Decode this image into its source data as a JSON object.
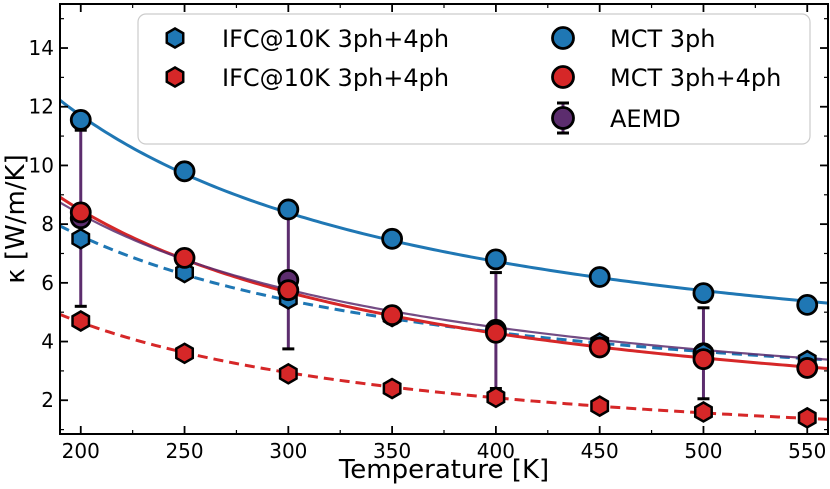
{
  "chart_data": {
    "type": "line",
    "xlabel": "Temperature [K]",
    "ylabel": "κ [W/m/K]",
    "xlim": [
      190,
      560
    ],
    "ylim": [
      0.85,
      15.5
    ],
    "xticks": [
      200,
      250,
      300,
      350,
      400,
      450,
      500,
      550
    ],
    "xtick_labels": [
      "200",
      "250",
      "300",
      "350",
      "400",
      "450",
      "500",
      "550"
    ],
    "yticks": [
      2,
      4,
      6,
      8,
      10,
      12,
      14
    ],
    "ytick_labels": [
      "2",
      "4",
      "6",
      "8",
      "10",
      "12",
      "14"
    ],
    "grid": false,
    "legend_position": "top-right",
    "colors": {
      "blue": "#1f77b4",
      "red": "#d62728",
      "purple": "#5c2d6e",
      "edge": "#000000"
    },
    "x": [
      200,
      250,
      300,
      350,
      400,
      450,
      500,
      550
    ],
    "series": [
      {
        "name": "IFC@10K 3ph+4ph",
        "marker": "hexagon",
        "color": "blue",
        "line": "dashed",
        "values": [
          7.5,
          6.35,
          5.45,
          4.85,
          4.35,
          3.95,
          3.6,
          3.35
        ]
      },
      {
        "name": "IFC@10K 3ph+4ph",
        "marker": "hexagon",
        "color": "red",
        "line": "dashed",
        "values": [
          4.7,
          3.6,
          2.9,
          2.4,
          2.1,
          1.8,
          1.6,
          1.4
        ]
      },
      {
        "name": "MCT 3ph",
        "marker": "circle",
        "color": "blue",
        "line": "solid",
        "values": [
          11.55,
          9.8,
          8.5,
          7.5,
          6.8,
          6.2,
          5.65,
          5.25
        ]
      },
      {
        "name": "MCT 3ph+4ph",
        "marker": "circle",
        "color": "red",
        "line": "solid",
        "values": [
          8.4,
          6.85,
          5.75,
          4.9,
          4.3,
          3.8,
          3.4,
          3.1
        ]
      },
      {
        "name": "AEMD",
        "marker": "circle",
        "color": "purple",
        "line": "none",
        "errorbars": true,
        "x": [
          200,
          300,
          400,
          500
        ],
        "values": [
          8.2,
          6.1,
          4.4,
          3.6
        ],
        "lower": [
          5.2,
          3.75,
          2.4,
          2.05
        ],
        "upper": [
          11.2,
          8.5,
          6.35,
          5.15
        ]
      }
    ]
  }
}
